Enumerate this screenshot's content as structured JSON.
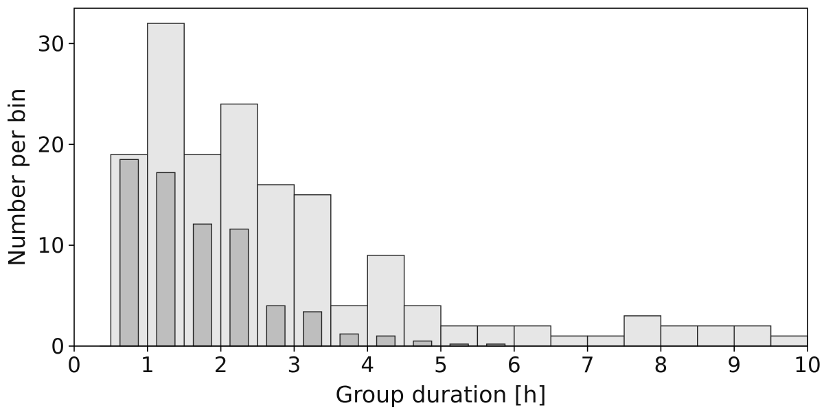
{
  "chart_data": {
    "type": "bar",
    "xlabel": "Group duration [h]",
    "ylabel": "Number per bin",
    "xlim": [
      0,
      10
    ],
    "ylim": [
      0,
      33.5
    ],
    "x_ticks": [
      0,
      1,
      2,
      3,
      4,
      5,
      6,
      7,
      8,
      9,
      10
    ],
    "y_ticks": [
      0,
      10,
      20,
      30
    ],
    "grid": false,
    "series": [
      {
        "kind": "histogram",
        "bin_width": 0.5,
        "bins": [
          {
            "start": 0.5,
            "count": 19
          },
          {
            "start": 1.0,
            "count": 32
          },
          {
            "start": 1.5,
            "count": 19
          },
          {
            "start": 2.0,
            "count": 24
          },
          {
            "start": 2.5,
            "count": 16
          },
          {
            "start": 3.0,
            "count": 15
          },
          {
            "start": 3.5,
            "count": 4
          },
          {
            "start": 4.0,
            "count": 9
          },
          {
            "start": 4.5,
            "count": 4
          },
          {
            "start": 5.0,
            "count": 2
          },
          {
            "start": 5.5,
            "count": 2
          },
          {
            "start": 6.0,
            "count": 2
          },
          {
            "start": 6.5,
            "count": 1
          },
          {
            "start": 7.0,
            "count": 1
          },
          {
            "start": 7.5,
            "count": 3
          },
          {
            "start": 8.0,
            "count": 2
          },
          {
            "start": 8.5,
            "count": 2
          },
          {
            "start": 9.0,
            "count": 2
          },
          {
            "start": 9.5,
            "count": 1
          }
        ],
        "fill": "#e6e6e6",
        "stroke": "#222222"
      },
      {
        "kind": "bars",
        "bar_width": 0.25,
        "points": [
          {
            "x": 0.75,
            "value": 18.5
          },
          {
            "x": 1.25,
            "value": 17.2
          },
          {
            "x": 1.75,
            "value": 12.1
          },
          {
            "x": 2.25,
            "value": 11.6
          },
          {
            "x": 2.75,
            "value": 4.0
          },
          {
            "x": 3.25,
            "value": 3.4
          },
          {
            "x": 3.75,
            "value": 1.2
          },
          {
            "x": 4.25,
            "value": 1.0
          },
          {
            "x": 4.75,
            "value": 0.5
          },
          {
            "x": 5.25,
            "value": 0.2
          },
          {
            "x": 5.75,
            "value": 0.2
          }
        ],
        "fill": "#bebebe",
        "stroke": "#222222"
      }
    ]
  }
}
